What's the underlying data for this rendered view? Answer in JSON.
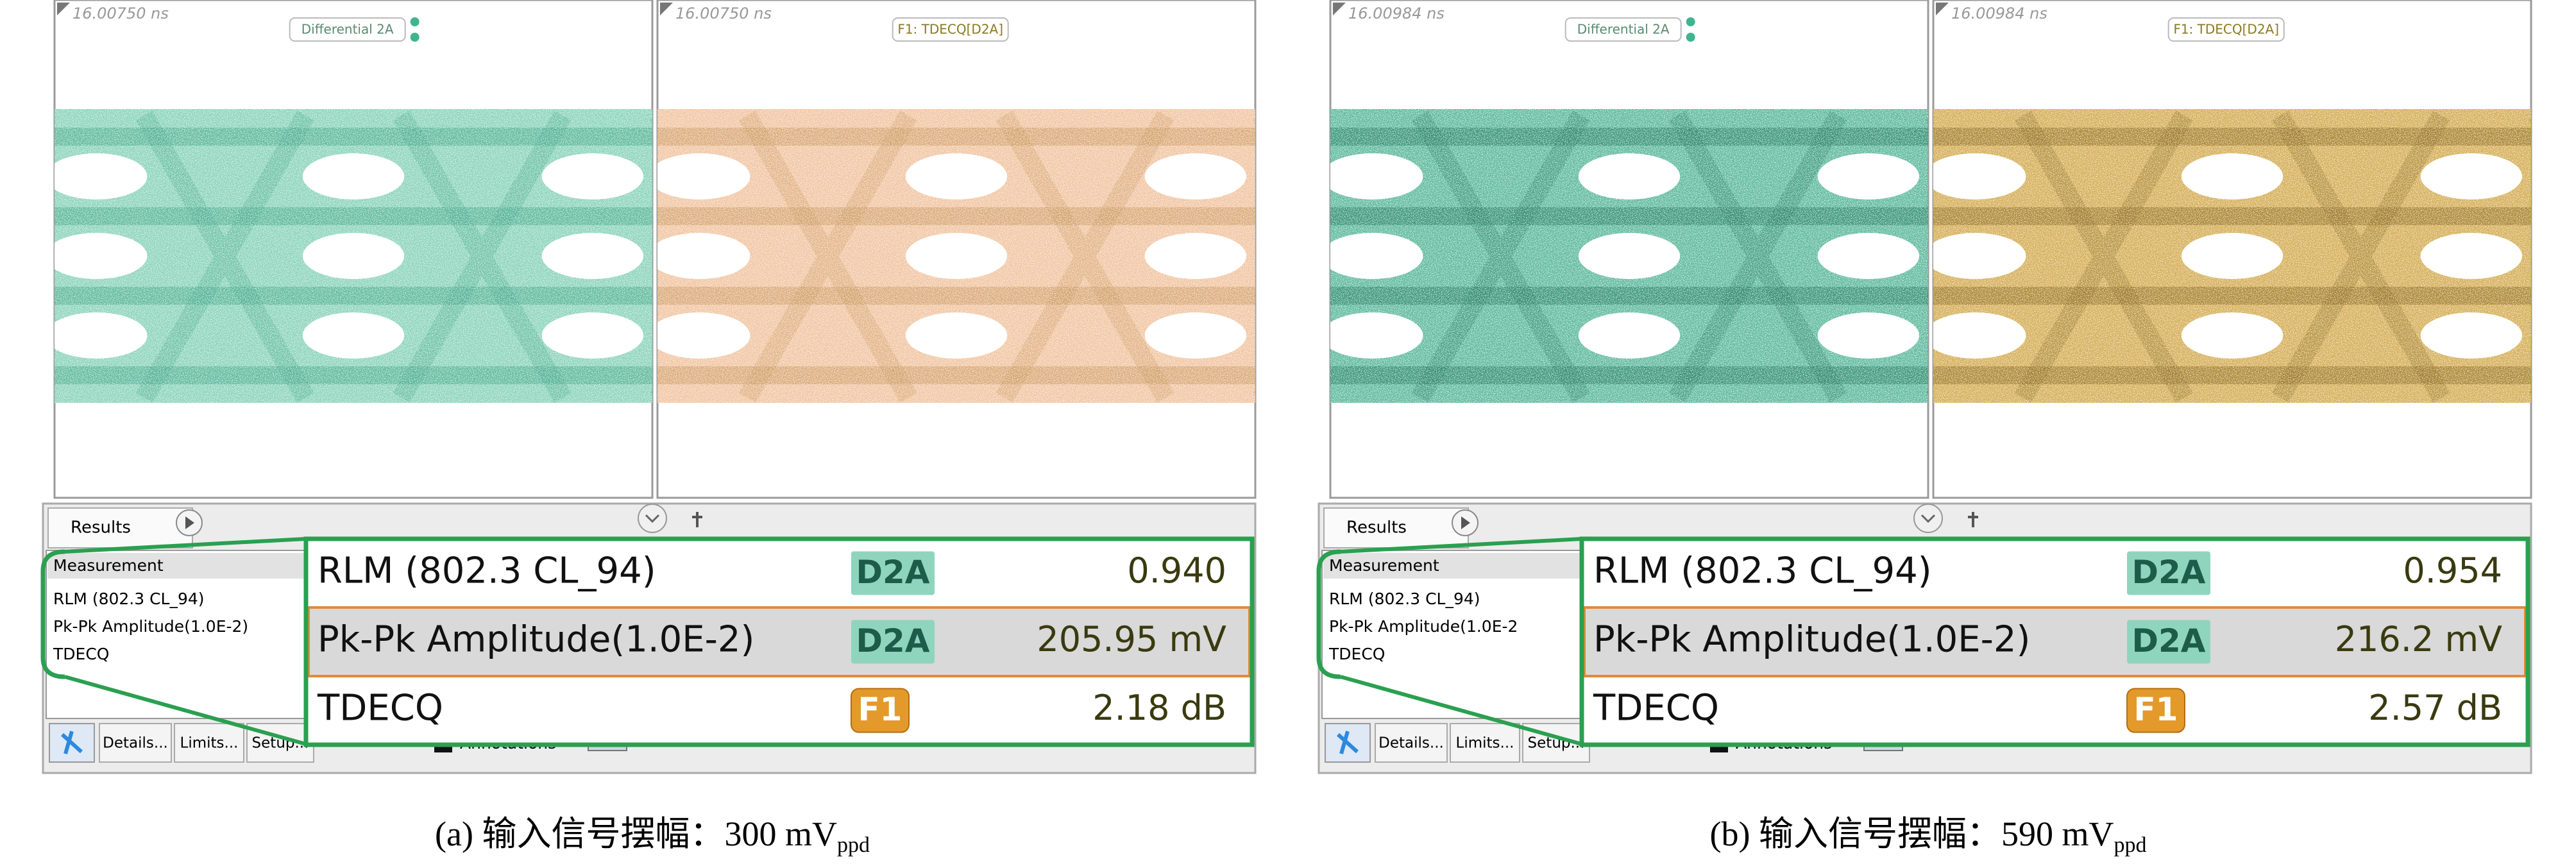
{
  "panels": [
    {
      "caption": "(a) 输入信号摆幅：300 mV",
      "caption_sub": "ppd",
      "screens": [
        {
          "time": "16.00750 ns",
          "tag": "Differential 2A"
        },
        {
          "time": "16.00750 ns",
          "tag": "F1: TDECQ[D2A]"
        }
      ],
      "results": {
        "tab": "Results",
        "header": "Measurement",
        "items": [
          "RLM (802.3 CL_94)",
          "Pk-Pk Amplitude(1.0E-2)",
          "TDECQ"
        ],
        "buttons": [
          "Details...",
          "Limits...",
          "Setup..."
        ],
        "annotations": "Annotations"
      },
      "zoom": [
        {
          "name": "RLM (802.3 CL_94)",
          "source": "D2A",
          "value": "0.940"
        },
        {
          "name": "Pk-Pk Amplitude(1.0E-2)",
          "source": "D2A",
          "value": "205.95 mV"
        },
        {
          "name": "TDECQ",
          "source": "F1",
          "value": "2.18 dB"
        }
      ]
    },
    {
      "caption": "(b) 输入信号摆幅：590 mV",
      "caption_sub": "ppd",
      "screens": [
        {
          "time": "16.00984 ns",
          "tag": "Differential 2A"
        },
        {
          "time": "16.00984 ns",
          "tag": "F1: TDECQ[D2A]"
        }
      ],
      "results": {
        "tab": "Results",
        "header": "Measurement",
        "items": [
          "RLM (802.3 CL_94)",
          "Pk-Pk Amplitude(1.0E-2",
          "TDECQ"
        ],
        "buttons": [
          "Details...",
          "Limits...",
          "Setup..."
        ],
        "annotations": "Annotations"
      },
      "zoom": [
        {
          "name": "RLM (802.3 CL_94)",
          "source": "D2A",
          "value": "0.954"
        },
        {
          "name": "Pk-Pk Amplitude(1.0E-2)",
          "source": "D2A",
          "value": "216.2 mV"
        },
        {
          "name": "TDECQ",
          "source": "F1",
          "value": "2.57 dB"
        }
      ]
    }
  ]
}
